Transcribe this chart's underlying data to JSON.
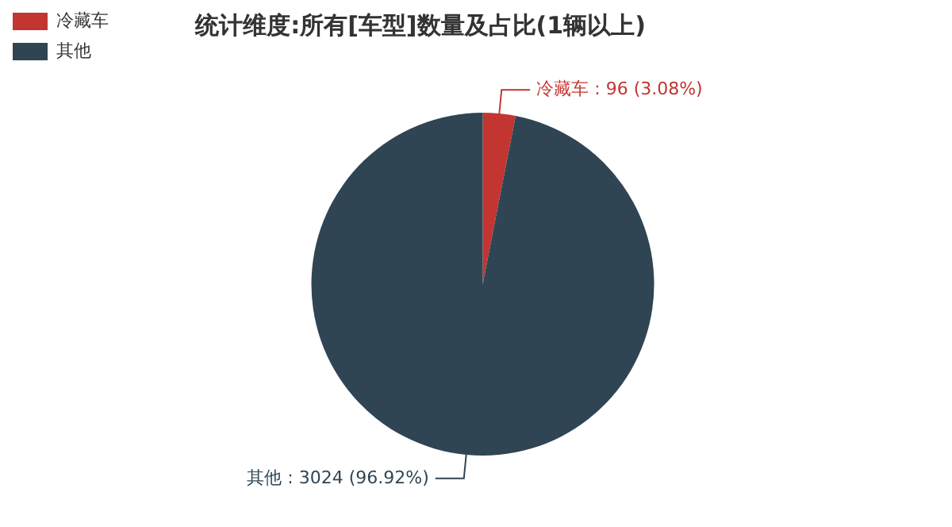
{
  "chart_data": {
    "type": "pie",
    "title": "统计维度:所有[车型]数量及占比(1辆以上)",
    "categories": [
      "冷藏车",
      "其他"
    ],
    "values": [
      96,
      3024
    ],
    "colors": [
      "#c23531",
      "#2f4554"
    ],
    "value_labels": [
      "冷藏车 : 96 (3.08%)",
      "其他 : 3024 (96.92%)"
    ],
    "legend": "top left"
  }
}
